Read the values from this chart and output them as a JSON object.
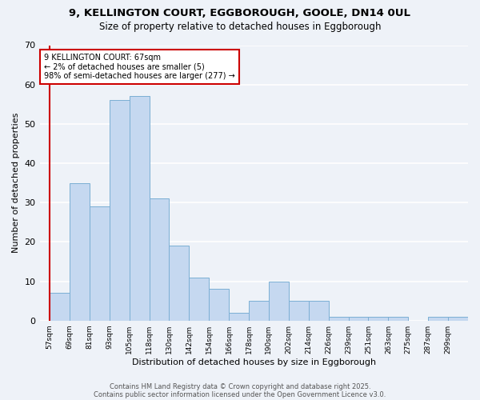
{
  "title_line1": "9, KELLINGTON COURT, EGGBOROUGH, GOOLE, DN14 0UL",
  "title_line2": "Size of property relative to detached houses in Eggborough",
  "xlabel": "Distribution of detached houses by size in Eggborough",
  "ylabel": "Number of detached properties",
  "categories": [
    "57sqm",
    "69sqm",
    "81sqm",
    "93sqm",
    "105sqm",
    "118sqm",
    "130sqm",
    "142sqm",
    "154sqm",
    "166sqm",
    "178sqm",
    "190sqm",
    "202sqm",
    "214sqm",
    "226sqm",
    "239sqm",
    "251sqm",
    "263sqm",
    "275sqm",
    "287sqm",
    "299sqm"
  ],
  "values": [
    7,
    35,
    29,
    56,
    57,
    31,
    19,
    11,
    8,
    2,
    5,
    10,
    5,
    5,
    1,
    1,
    1,
    1,
    0,
    1,
    1
  ],
  "bar_color": "#c5d8f0",
  "bar_edge_color": "#7bafd4",
  "bg_color": "#eef2f8",
  "grid_color": "#ffffff",
  "vline_color": "#cc0000",
  "annotation_text": "9 KELLINGTON COURT: 67sqm\n← 2% of detached houses are smaller (5)\n98% of semi-detached houses are larger (277) →",
  "annotation_box_edgecolor": "#cc0000",
  "ylim": [
    0,
    70
  ],
  "yticks": [
    0,
    10,
    20,
    30,
    40,
    50,
    60,
    70
  ],
  "footer_line1": "Contains HM Land Registry data © Crown copyright and database right 2025.",
  "footer_line2": "Contains public sector information licensed under the Open Government Licence v3.0."
}
